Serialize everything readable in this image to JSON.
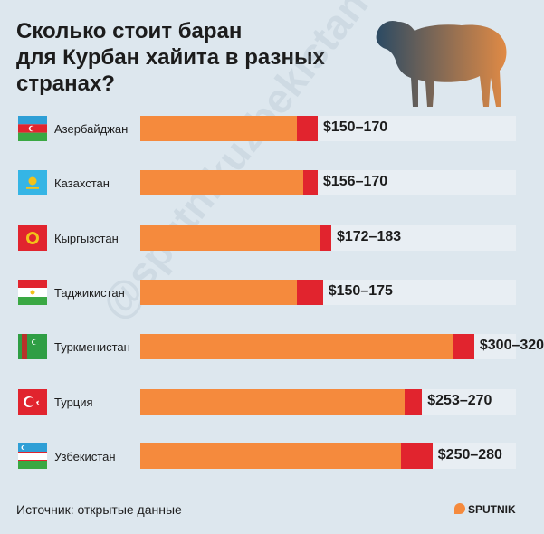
{
  "title": "Сколько стоит баран\nдля Курбан хайита в разных\nстранах?",
  "source": "Источник: открытые данные",
  "logo": "SPUTNIK",
  "watermark": "@sputnikuzbekistan",
  "colors": {
    "background": "#dde7ee",
    "min_bar": "#f58a3d",
    "range_bar": "#e1242e",
    "track": "#e8eef3"
  },
  "chart_data": {
    "type": "bar",
    "orientation": "horizontal",
    "unit": "$",
    "categories": [
      "Азербайджан",
      "Казахстан",
      "Кыргызстан",
      "Таджикистан",
      "Туркменистан",
      "Турция",
      "Узбекистан"
    ],
    "labels": [
      "$150–170",
      "$156–170",
      "$172–183",
      "$150–175",
      "$300–320",
      "$253–270",
      "$250–280"
    ],
    "series": [
      {
        "name": "min",
        "values": [
          150,
          156,
          172,
          150,
          300,
          253,
          250
        ]
      },
      {
        "name": "max",
        "values": [
          170,
          170,
          183,
          175,
          320,
          270,
          280
        ]
      }
    ],
    "flags": [
      "flag-azerbaijan",
      "flag-kazakhstan",
      "flag-kyrgyzstan",
      "flag-tajikistan",
      "flag-turkmenistan",
      "flag-turkey",
      "flag-uzbekistan"
    ],
    "xlim": [
      0,
      360
    ]
  }
}
